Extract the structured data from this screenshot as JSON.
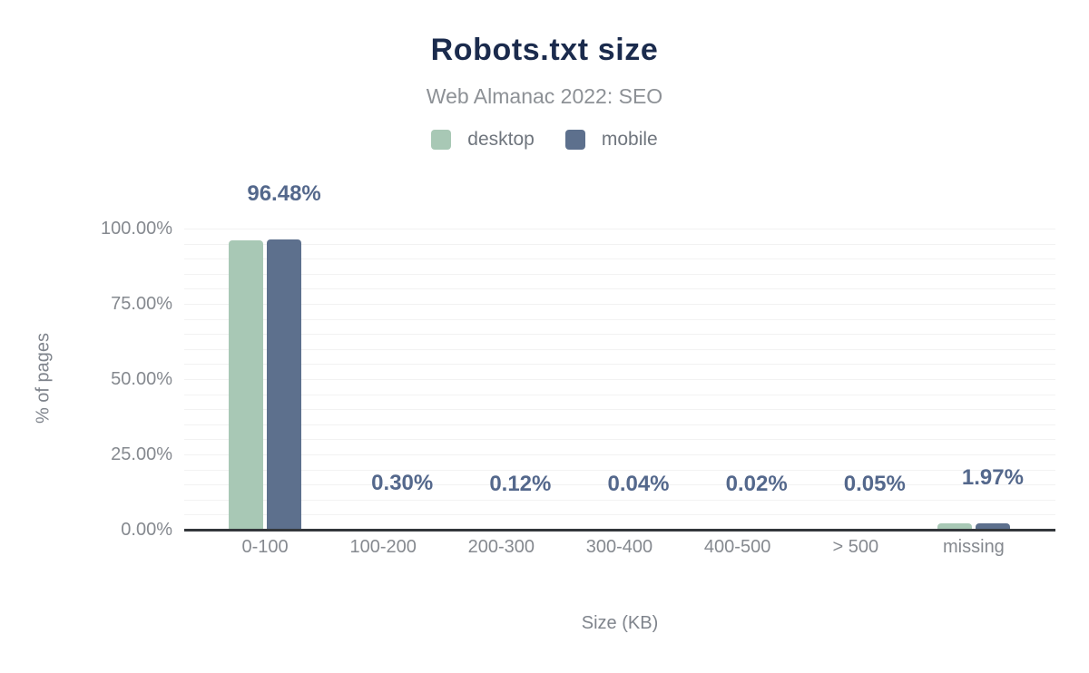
{
  "header": {
    "title": "Robots.txt size",
    "subtitle": "Web Almanac 2022: SEO"
  },
  "legend": {
    "items": [
      {
        "label": "desktop",
        "color": "#a8c8b5"
      },
      {
        "label": "mobile",
        "color": "#5d708d"
      }
    ]
  },
  "chart_data": {
    "type": "bar",
    "title": "Robots.txt size",
    "subtitle": "Web Almanac 2022: SEO",
    "categories": [
      "0-100",
      "100-200",
      "200-300",
      "300-400",
      "400-500",
      "> 500",
      "missing"
    ],
    "series": [
      {
        "name": "desktop",
        "color": "#a8c8b5",
        "values": [
          96.2,
          0.3,
          0.12,
          0.04,
          0.02,
          0.05,
          2.0
        ]
      },
      {
        "name": "mobile",
        "color": "#5d708d",
        "values": [
          96.48,
          0.3,
          0.12,
          0.04,
          0.02,
          0.05,
          1.97
        ]
      }
    ],
    "data_labels": [
      "96.48%",
      "0.30%",
      "0.12%",
      "0.04%",
      "0.02%",
      "0.05%",
      "1.97%"
    ],
    "data_label_series": "mobile",
    "xlabel": "Size (KB)",
    "ylabel": "% of pages",
    "ylim": [
      0,
      100
    ],
    "ytick_labels": [
      "0.00%",
      "25.00%",
      "50.00%",
      "75.00%",
      "100.00%"
    ],
    "ytick_values": [
      0,
      25,
      50,
      75,
      100
    ],
    "minor_grid_step": 5,
    "grid": "horizontal",
    "legend_position": "top"
  },
  "colors": {
    "background": "#ffffff",
    "title": "#1b2b4d",
    "subtitle": "#8d9196",
    "legend_text": "#70767e",
    "tick_text": "#85898f",
    "axis_title_text": "#7f848c",
    "data_label": "#54688c",
    "axis_line": "#33373b",
    "gridline": "#f2f2f2",
    "desktop_bar": "#a8c8b5",
    "mobile_bar": "#5d708d"
  }
}
